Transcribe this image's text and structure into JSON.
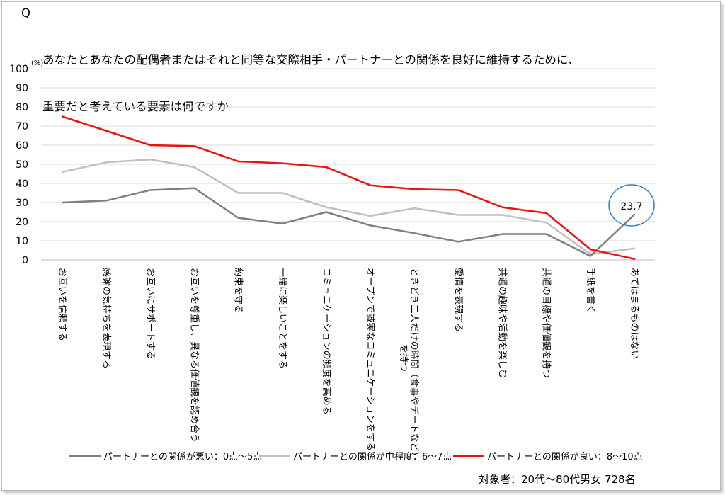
{
  "title": {
    "q_mark": "Q",
    "line1": "あなたとあなたの配偶者またはそれと同等な交際相手・パートナーとの関係を良好に維持するために、",
    "line2": "重要だと考えている要素は何ですか"
  },
  "footnote": "対象者：20代～80代男女 728名",
  "colors": {
    "bad": "#7f7f7f",
    "mid": "#bfbfbf",
    "good": "#ee1111",
    "circle": "#2f7fc8"
  },
  "chart_data": {
    "type": "line",
    "ylabel": "(%)",
    "ylim": [
      0,
      100
    ],
    "yticks": [
      0,
      10,
      20,
      30,
      40,
      50,
      60,
      70,
      80,
      90,
      100
    ],
    "grid": true,
    "legend": "bottom",
    "categories": [
      "お互いを信頼する",
      "感謝の気持ちを表現する",
      "お互いにサポートする",
      "お互いを尊重し、異なる価値観を認め合う",
      "約束を守る",
      "一緒に楽しいことをする",
      "コミュニケーションの頻度を高める",
      "オープンで誠実なコミュニケーションをする",
      "ときどき二人だけの時間（食事やデートなど）を持つ",
      "愛情を表現する",
      "共通の趣味や活動を楽しむ",
      "共通の目標や価値観を持つ",
      "手紙を書く",
      "あてはまるものはない"
    ],
    "series": [
      {
        "name": "パートナーとの関係が悪い：0点～5点",
        "color": "#7f7f7f",
        "values": [
          30,
          31,
          36.5,
          37.5,
          22,
          19,
          25,
          18,
          14,
          9.5,
          13.5,
          13.5,
          2,
          23.7
        ]
      },
      {
        "name": "パートナーとの関係が中程度：6～7点",
        "color": "#bfbfbf",
        "values": [
          46,
          51,
          52.5,
          48.5,
          35,
          35,
          27.5,
          23,
          27,
          23.5,
          23.5,
          19.5,
          3,
          6
        ]
      },
      {
        "name": "パートナーとの関係が良い：8～10点",
        "color": "#ee1111",
        "values": [
          75,
          67.5,
          60,
          59.5,
          51.5,
          50.5,
          48.5,
          39,
          37,
          36.5,
          27.5,
          24.5,
          5.5,
          0.5
        ]
      }
    ],
    "annotations": [
      {
        "text": "23.7",
        "category_index": 13,
        "series_index": 0
      }
    ]
  }
}
